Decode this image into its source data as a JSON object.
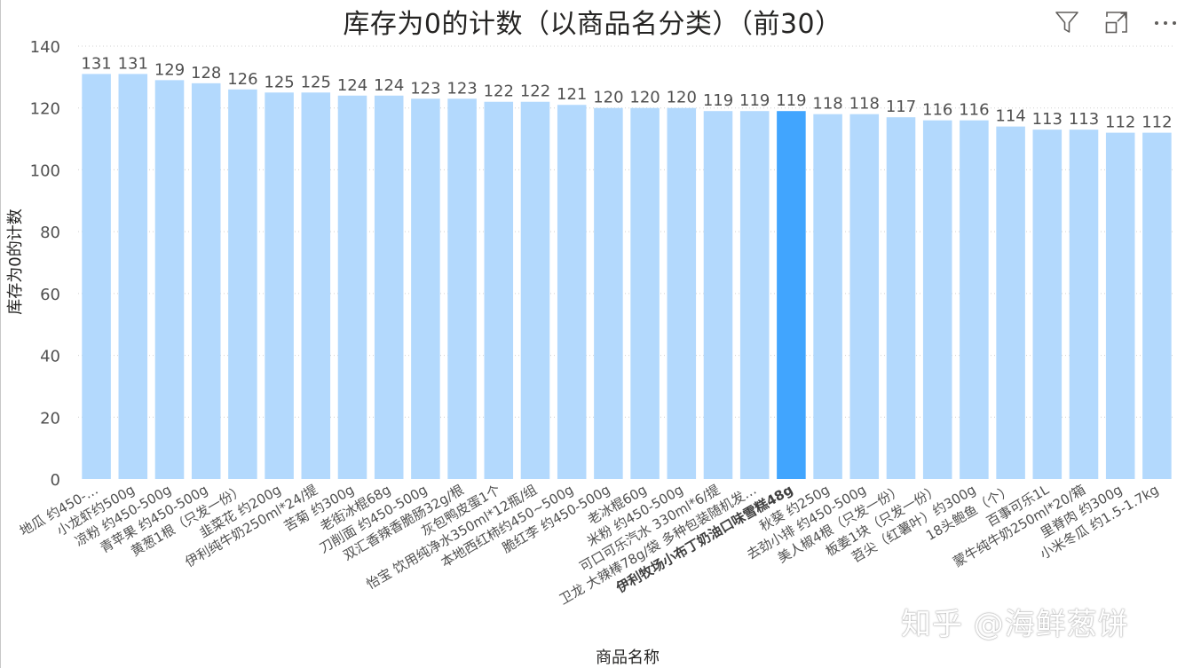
{
  "header": {
    "title": "库存为0的计数（以商品名分类）（前30）",
    "icons": [
      "filter-icon",
      "focus-mode-icon",
      "more-options-icon"
    ]
  },
  "watermark": "知乎 @海鲜葱饼",
  "colors": {
    "bar": "#b3d9fd",
    "bar_highlight": "#41a5fe",
    "grid": "#d0d0d0",
    "text": "#505050"
  },
  "chart_data": {
    "type": "bar",
    "title": "库存为0的计数（以商品名分类）（前30）",
    "xlabel": "商品名称",
    "ylabel": "库存为0的计数",
    "ylim": [
      0,
      140
    ],
    "yticks": [
      0,
      20,
      40,
      60,
      80,
      100,
      120,
      140
    ],
    "grid": true,
    "highlight_index": 19,
    "categories": [
      "地瓜 约450-…",
      "小龙虾约500g",
      "凉粉 约450-500g",
      "青苹果 约450-500g",
      "黄葱1根（只发一份）",
      "韭菜花 约200g",
      "伊利纯牛奶250ml*24/提",
      "苦菊 约300g",
      "老街冰棍68g",
      "刀削面 约450-500g",
      "双汇香辣香脆肠32g/根",
      "灰包鸭皮蛋1个",
      "怡宝 饮用纯净水350ml*12瓶/组",
      "本地西红柿约450~500g",
      "脆红李 约450-500g",
      "老冰棍60g",
      "米粉 约450-500g",
      "可口可乐汽水 330ml*6/提",
      "卫龙 大辣棒78g/袋 多种包装随机发…",
      "伊利牧场小布丁奶油口味雪糕48g",
      "秋葵 约250g",
      "去劲小排 约450-500g",
      "美人椒4根（只发一份）",
      "板姜1块（只发一份）",
      "苕尖（红薯叶）约300g",
      "18头鲍鱼（个）",
      "百事可乐1L",
      "蒙牛纯牛奶250ml*20/箱",
      "里脊肉 约300g",
      "小米冬瓜 约1.5-1.7kg"
    ],
    "values": [
      131,
      131,
      129,
      128,
      126,
      125,
      125,
      124,
      124,
      123,
      123,
      122,
      122,
      121,
      120,
      120,
      120,
      119,
      119,
      119,
      118,
      118,
      117,
      116,
      116,
      114,
      113,
      113,
      112,
      112
    ]
  }
}
